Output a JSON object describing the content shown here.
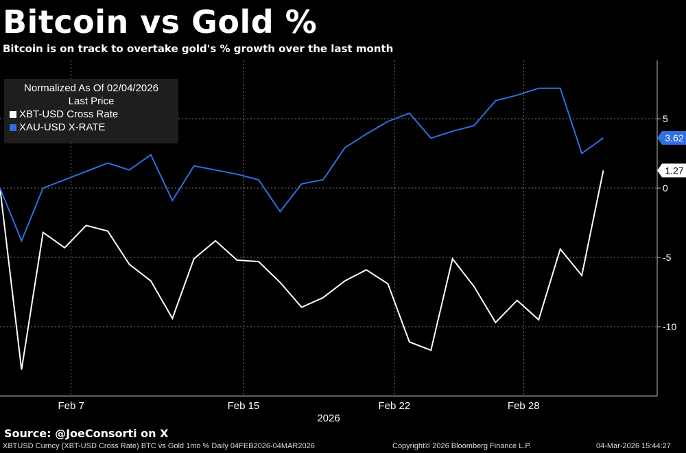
{
  "header": {
    "title": "Bitcoin vs Gold %",
    "subtitle": "Bitcoin is on track to overtake gold's % growth over the last month"
  },
  "legend": {
    "line1": "Normalized As Of 02/04/2026",
    "line2": "Last Price",
    "series": [
      {
        "label": "XBT-USD Cross Rate",
        "color": "#ffffff"
      },
      {
        "label": "XAU-USD X-RATE",
        "color": "#2f6fe0"
      }
    ]
  },
  "chart_data": {
    "type": "line",
    "title": "Bitcoin vs Gold %",
    "xlabel": "2026",
    "ylabel": "",
    "ylim": [
      -15,
      9
    ],
    "y_ticks": [
      5,
      0,
      -5,
      -10
    ],
    "x_tick_labels": [
      {
        "label": "Feb 7",
        "day": 3.3
      },
      {
        "label": "Feb 15",
        "day": 11.3
      },
      {
        "label": "Feb 22",
        "day": 18.3
      },
      {
        "label": "Feb 28",
        "day": 24.3
      }
    ],
    "x_year_label": "2026",
    "series": [
      {
        "name": "XBT-USD Cross Rate",
        "color": "#ffffff",
        "days": [
          0,
          1,
          2,
          3,
          4,
          5,
          6,
          7,
          8,
          9,
          10,
          11,
          12,
          13,
          14,
          15,
          16,
          17,
          18,
          19,
          20,
          21,
          22,
          23,
          24,
          25,
          26,
          27,
          28
        ],
        "values": [
          0,
          -13.1,
          -3.2,
          -4.3,
          -2.7,
          -3.1,
          -5.5,
          -6.7,
          -9.4,
          -5.1,
          -3.8,
          -5.2,
          -5.3,
          -6.8,
          -8.6,
          -7.9,
          -6.7,
          -5.9,
          -6.9,
          -11.1,
          -11.7,
          -5.1,
          -7.1,
          -9.7,
          -8.1,
          -9.5,
          -4.4,
          -6.3,
          1.27
        ],
        "last_label": "1.27"
      },
      {
        "name": "XAU-USD X-RATE",
        "color": "#2f6fe0",
        "days": [
          0,
          1,
          2,
          3,
          4,
          5,
          6,
          7,
          8,
          9,
          10,
          11,
          12,
          13,
          14,
          15,
          16,
          17,
          18,
          19,
          20,
          21,
          22,
          23,
          24,
          25,
          26,
          27,
          28
        ],
        "values": [
          0,
          -3.8,
          0.0,
          0.6,
          1.2,
          1.8,
          1.3,
          2.4,
          -0.9,
          1.6,
          1.3,
          1.0,
          0.6,
          -1.7,
          0.3,
          0.6,
          2.9,
          3.9,
          4.8,
          5.4,
          3.6,
          4.1,
          4.5,
          6.3,
          6.7,
          7.2,
          7.2,
          2.5,
          3.62
        ],
        "last_label": "3.62"
      }
    ]
  },
  "footer": {
    "source": "Source: @JoeConsorti on X",
    "left": "XBTUSD Curncy (XBT-USD Cross Rate) BTC vs Gold 1mo % Daily 04FEB2026-04MAR2026",
    "center": "Copyright© 2026 Bloomberg Finance L.P.",
    "right": "04-Mar-2026 15:44:27"
  }
}
